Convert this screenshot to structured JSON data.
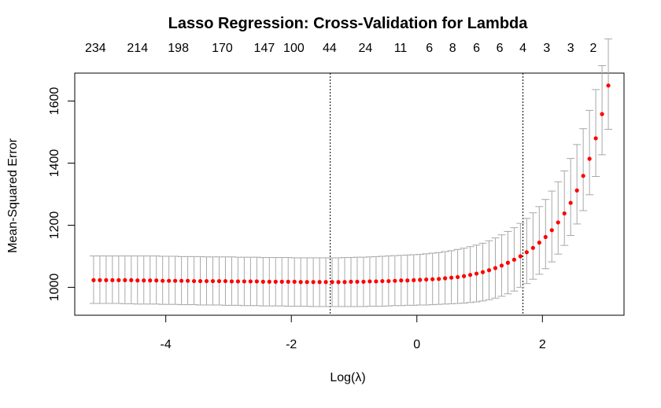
{
  "chart_data": {
    "type": "scatter",
    "title": "Lasso Regression: Cross-Validation for Lambda",
    "xlabel": "Log(λ)",
    "ylabel": "Mean-Squared Error",
    "xlim": [
      -5.45,
      3.3
    ],
    "ylim": [
      910,
      1690
    ],
    "x_ticks": [
      -4,
      -2,
      0,
      2
    ],
    "y_ticks": [
      1000,
      1200,
      1400,
      1600
    ],
    "top_axis": {
      "labels": [
        "234",
        "214",
        "198",
        "170",
        "147",
        "100",
        "44",
        "24",
        "11",
        "6",
        "8",
        "6",
        "6",
        "4",
        "3",
        "3",
        "2"
      ],
      "positions": [
        -5.12,
        -4.45,
        -3.8,
        -3.1,
        -2.43,
        -1.96,
        -1.39,
        -0.82,
        -0.26,
        0.2,
        0.57,
        0.95,
        1.32,
        1.69,
        2.07,
        2.45,
        2.81
      ]
    },
    "vlines": [
      -1.38,
      1.69
    ],
    "series": [
      {
        "marker_color": "#ff0000",
        "errorbar_color": "#a8a8a8",
        "x": [
          -5.15,
          -5.05,
          -4.95,
          -4.85,
          -4.75,
          -4.65,
          -4.55,
          -4.45,
          -4.35,
          -4.25,
          -4.15,
          -4.05,
          -3.95,
          -3.85,
          -3.75,
          -3.65,
          -3.55,
          -3.45,
          -3.35,
          -3.25,
          -3.15,
          -3.05,
          -2.95,
          -2.85,
          -2.75,
          -2.65,
          -2.55,
          -2.45,
          -2.35,
          -2.25,
          -2.15,
          -2.05,
          -1.95,
          -1.85,
          -1.75,
          -1.65,
          -1.55,
          -1.45,
          -1.35,
          -1.25,
          -1.15,
          -1.05,
          -0.95,
          -0.85,
          -0.75,
          -0.65,
          -0.55,
          -0.45,
          -0.35,
          -0.25,
          -0.15,
          -0.05,
          0.05,
          0.15,
          0.25,
          0.35,
          0.45,
          0.55,
          0.65,
          0.75,
          0.85,
          0.95,
          1.05,
          1.15,
          1.25,
          1.35,
          1.45,
          1.55,
          1.65,
          1.75,
          1.85,
          1.95,
          2.05,
          2.15,
          2.25,
          2.35,
          2.45,
          2.55,
          2.65,
          2.75,
          2.85,
          2.95,
          3.05
        ],
        "y": [
          1023,
          1023,
          1023,
          1023,
          1023,
          1023,
          1023,
          1022,
          1022,
          1022,
          1022,
          1021,
          1021,
          1021,
          1021,
          1021,
          1020,
          1020,
          1020,
          1020,
          1020,
          1020,
          1019,
          1019,
          1019,
          1019,
          1019,
          1018,
          1018,
          1018,
          1018,
          1018,
          1018,
          1017,
          1017,
          1017,
          1017,
          1017,
          1017,
          1017,
          1017,
          1018,
          1018,
          1018,
          1019,
          1019,
          1020,
          1020,
          1021,
          1022,
          1022,
          1023,
          1024,
          1025,
          1026,
          1027,
          1029,
          1031,
          1033,
          1036,
          1040,
          1044,
          1049,
          1055,
          1062,
          1070,
          1079,
          1089,
          1100,
          1113,
          1127,
          1144,
          1162,
          1184,
          1209,
          1238,
          1272,
          1312,
          1359,
          1414,
          1480,
          1558,
          1650
        ],
        "error_low": [
          948,
          948,
          948,
          948,
          948,
          947,
          947,
          946,
          946,
          946,
          946,
          945,
          945,
          945,
          944,
          944,
          944,
          943,
          943,
          943,
          943,
          942,
          942,
          942,
          941,
          941,
          941,
          940,
          940,
          940,
          940,
          939,
          939,
          939,
          939,
          938,
          938,
          938,
          938,
          938,
          938,
          938,
          938,
          938,
          939,
          939,
          939,
          940,
          941,
          941,
          942,
          942,
          943,
          943,
          944,
          945,
          946,
          947,
          948,
          949,
          951,
          953,
          956,
          960,
          965,
          971,
          979,
          988,
          1000,
          1012,
          1026,
          1042,
          1060,
          1082,
          1107,
          1135,
          1167,
          1204,
          1247,
          1298,
          1357,
          1427,
          1509
        ],
        "error_high": [
          1101,
          1101,
          1101,
          1101,
          1101,
          1101,
          1101,
          1101,
          1101,
          1101,
          1101,
          1100,
          1100,
          1100,
          1099,
          1099,
          1099,
          1099,
          1098,
          1098,
          1098,
          1098,
          1098,
          1097,
          1097,
          1097,
          1097,
          1096,
          1096,
          1096,
          1096,
          1096,
          1095,
          1095,
          1095,
          1095,
          1095,
          1095,
          1095,
          1095,
          1096,
          1096,
          1097,
          1097,
          1098,
          1099,
          1100,
          1101,
          1102,
          1103,
          1104,
          1105,
          1106,
          1108,
          1110,
          1112,
          1115,
          1118,
          1122,
          1126,
          1131,
          1136,
          1142,
          1150,
          1159,
          1169,
          1180,
          1192,
          1206,
          1222,
          1240,
          1260,
          1283,
          1310,
          1340,
          1375,
          1415,
          1460,
          1511,
          1570,
          1637,
          1714,
          1800
        ]
      }
    ]
  }
}
